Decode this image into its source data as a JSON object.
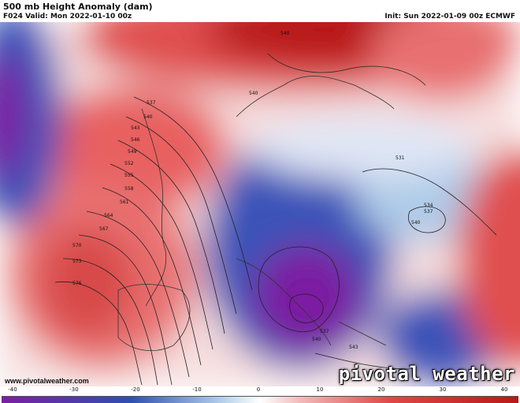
{
  "header": {
    "title": "500 mb Height Anomaly (dam)",
    "valid": "F024 Valid: Mon 2022-01-10 00z",
    "init": "Init: Sun 2022-01-09 00z ECMWF"
  },
  "map": {
    "contour_labels": [
      "540",
      "540",
      "537",
      "540",
      "543",
      "546",
      "549",
      "552",
      "555",
      "558",
      "561",
      "564",
      "567",
      "570",
      "573",
      "576",
      "531",
      "534",
      "537",
      "540",
      "537",
      "540",
      "543"
    ]
  },
  "footer": {
    "url": "www.pivotalweather.com",
    "brand": "pivotal weather"
  },
  "colorbar": {
    "ticks": [
      "-40",
      "-30",
      "-20",
      "-10",
      "0",
      "10",
      "20",
      "30",
      "40"
    ],
    "colors": {
      "neg_strong": "#7b1fa2",
      "neg_mid": "#2f4fb0",
      "neg_light": "#aecbe8",
      "neutral": "#ffffff",
      "pos_light": "#f2b8b8",
      "pos_mid": "#e04848",
      "pos_strong": "#b81818"
    }
  }
}
